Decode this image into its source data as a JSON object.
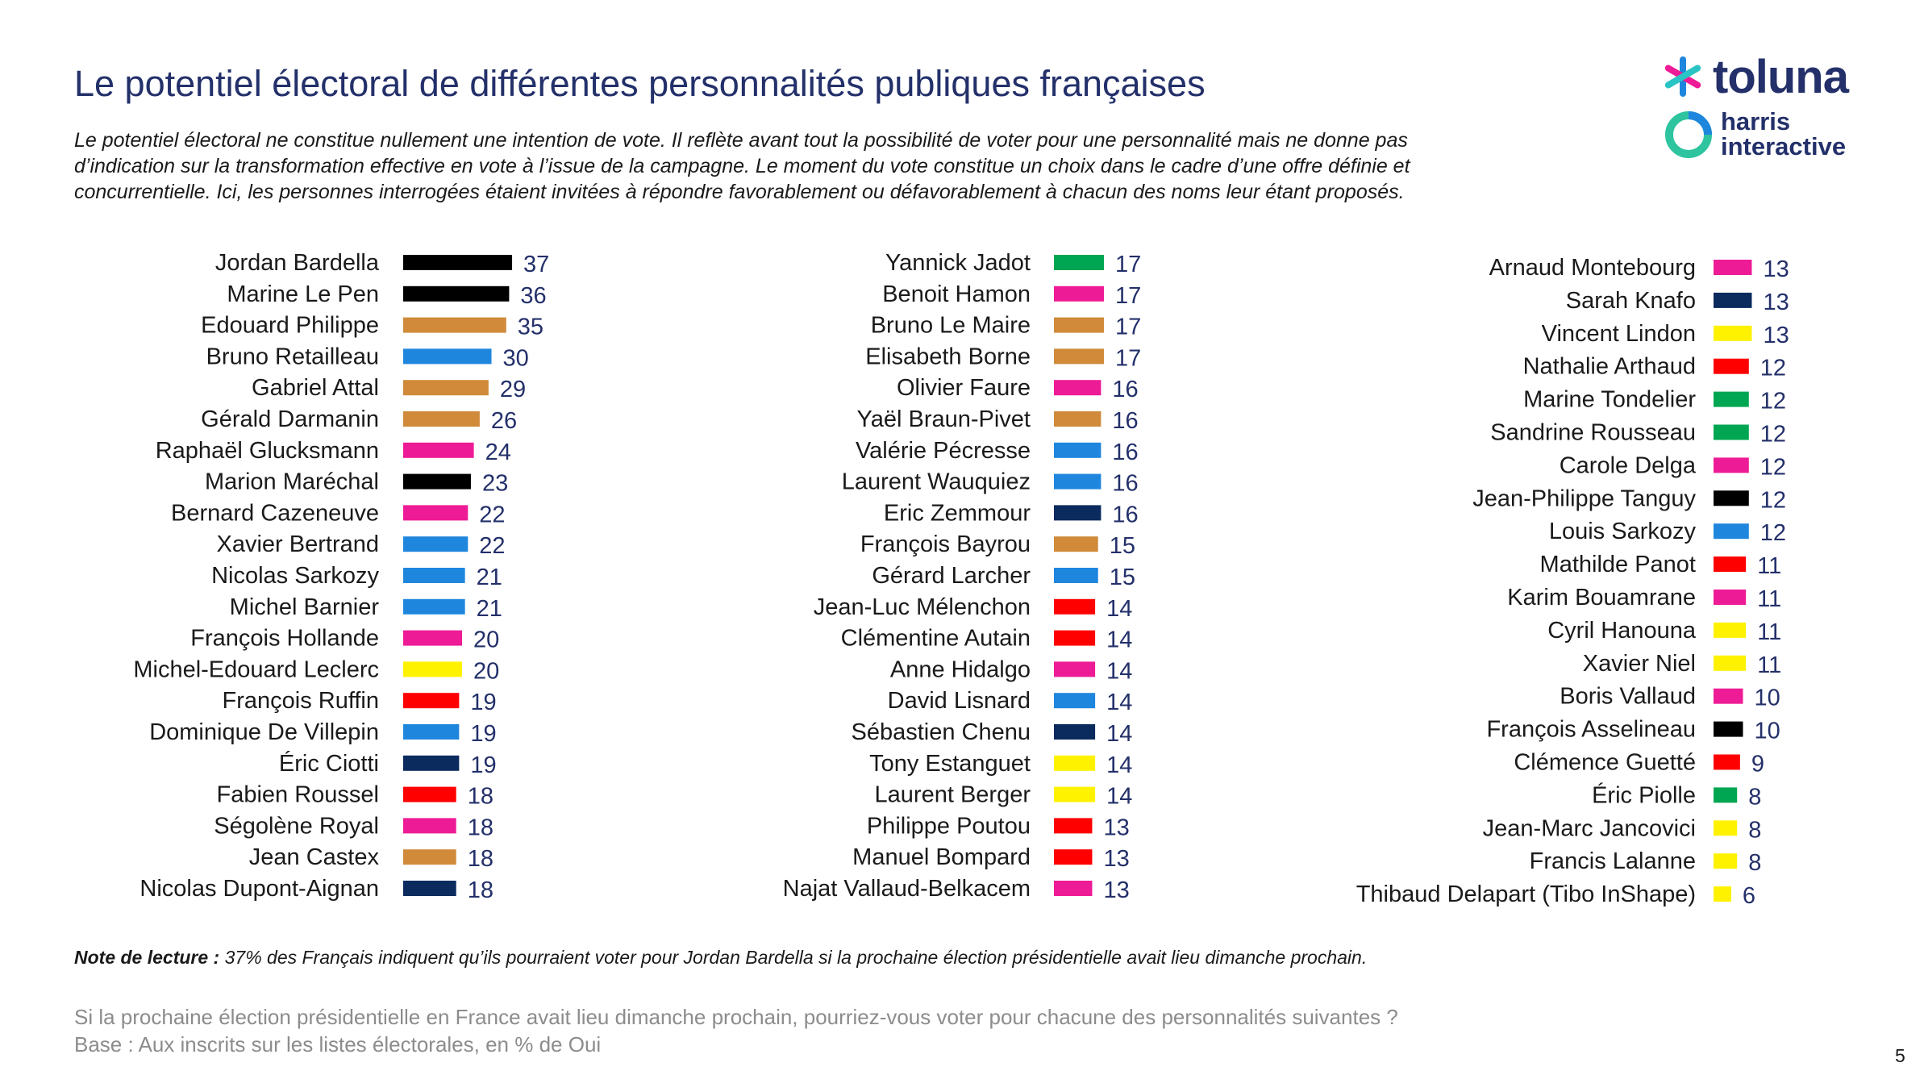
{
  "header": {
    "title": "Le potentiel électoral de différentes personnalités publiques françaises",
    "intro_lines": [
      "Le potentiel électoral ne constitue nullement une intention de vote. Il reflète avant tout la possibilité de voter pour une personnalité mais ne donne pas",
      "d’indication sur la transformation effective en vote à l’issue de la campagne. Le moment du vote constitue un choix dans le cadre d’une offre définie et",
      "concurrentielle. Ici, les personnes interrogées étaient invitées à répondre favorablement ou défavorablement à chacun des noms leur étant proposés."
    ]
  },
  "logos": {
    "toluna": "toluna",
    "harris_line1": "harris",
    "harris_line2": "interactive"
  },
  "footer": {
    "note_label": "Note de lecture :",
    "note_text": " 37% des Français indiquent qu’ils pourraient voter pour Jordan Bardella si la prochaine élection présidentielle avait lieu dimanche prochain.",
    "question": "Si la prochaine élection présidentielle en France avait lieu dimanche prochain, pourriez-vous voter pour chacune des personnalités suivantes ?",
    "base": "Base : Aux inscrits sur les listes électorales, en % de Oui",
    "page_number": "5"
  },
  "colors": {
    "black": "#000000",
    "orange": "#D08A3A",
    "blue": "#1F86DE",
    "pink": "#EE1B96",
    "yellow": "#FFF200",
    "red": "#FF0000",
    "navy": "#0B2A5E",
    "green": "#00A651",
    "value_text": "#23306A",
    "label_text": "#1a1a1a"
  },
  "chart_data": [
    {
      "type": "bar",
      "orientation": "horizontal",
      "categories": [
        "Jordan Bardella",
        "Marine Le Pen",
        "Edouard Philippe",
        "Bruno Retailleau",
        "Gabriel Attal",
        "Gérald Darmanin",
        "Raphaël Glucksmann",
        "Marion Maréchal",
        "Bernard Cazeneuve",
        "Xavier Bertrand",
        "Nicolas Sarkozy",
        "Michel Barnier",
        "François Hollande",
        "Michel-Edouard Leclerc",
        "François Ruffin",
        "Dominique De Villepin",
        "Éric Ciotti",
        "Fabien Roussel",
        "Ségolène Royal",
        "Jean Castex",
        "Nicolas Dupont-Aignan"
      ],
      "values": [
        37,
        36,
        35,
        30,
        29,
        26,
        24,
        23,
        22,
        22,
        21,
        21,
        20,
        20,
        19,
        19,
        19,
        18,
        18,
        18,
        18
      ],
      "bar_colors": [
        "black",
        "black",
        "orange",
        "blue",
        "orange",
        "orange",
        "pink",
        "black",
        "pink",
        "blue",
        "blue",
        "blue",
        "pink",
        "yellow",
        "red",
        "blue",
        "navy",
        "red",
        "pink",
        "orange",
        "navy"
      ]
    },
    {
      "type": "bar",
      "orientation": "horizontal",
      "categories": [
        "Yannick Jadot",
        "Benoit Hamon",
        "Bruno Le Maire",
        "Elisabeth Borne",
        "Olivier Faure",
        "Yaël Braun-Pivet",
        "Valérie Pécresse",
        "Laurent Wauquiez",
        "Eric Zemmour",
        "François Bayrou",
        "Gérard Larcher",
        "Jean-Luc Mélenchon",
        "Clémentine Autain",
        "Anne Hidalgo",
        "David Lisnard",
        "Sébastien Chenu",
        "Tony Estanguet",
        "Laurent Berger",
        "Philippe Poutou",
        "Manuel Bompard",
        "Najat Vallaud-Belkacem"
      ],
      "values": [
        17,
        17,
        17,
        17,
        16,
        16,
        16,
        16,
        16,
        15,
        15,
        14,
        14,
        14,
        14,
        14,
        14,
        14,
        13,
        13,
        13
      ],
      "bar_colors": [
        "green",
        "pink",
        "orange",
        "orange",
        "pink",
        "orange",
        "blue",
        "blue",
        "navy",
        "orange",
        "blue",
        "red",
        "red",
        "pink",
        "blue",
        "navy",
        "yellow",
        "yellow",
        "red",
        "red",
        "pink"
      ]
    },
    {
      "type": "bar",
      "orientation": "horizontal",
      "categories": [
        "Arnaud Montebourg",
        "Sarah Knafo",
        "Vincent Lindon",
        "Nathalie Arthaud",
        "Marine Tondelier",
        "Sandrine Rousseau",
        "Carole Delga",
        "Jean-Philippe Tanguy",
        "Louis Sarkozy",
        "Mathilde Panot",
        "Karim Bouamrane",
        "Cyril Hanouna",
        "Xavier Niel",
        "Boris Vallaud",
        "François Asselineau",
        "Clémence Guetté",
        "Éric Piolle",
        "Jean-Marc Jancovici",
        "Francis Lalanne",
        "Thibaud Delapart (Tibo InShape)"
      ],
      "values": [
        13,
        13,
        13,
        12,
        12,
        12,
        12,
        12,
        12,
        11,
        11,
        11,
        11,
        10,
        10,
        9,
        8,
        8,
        8,
        6
      ],
      "bar_colors": [
        "pink",
        "navy",
        "yellow",
        "red",
        "green",
        "green",
        "pink",
        "black",
        "blue",
        "red",
        "pink",
        "yellow",
        "yellow",
        "pink",
        "black",
        "red",
        "green",
        "yellow",
        "yellow",
        "yellow"
      ]
    }
  ]
}
